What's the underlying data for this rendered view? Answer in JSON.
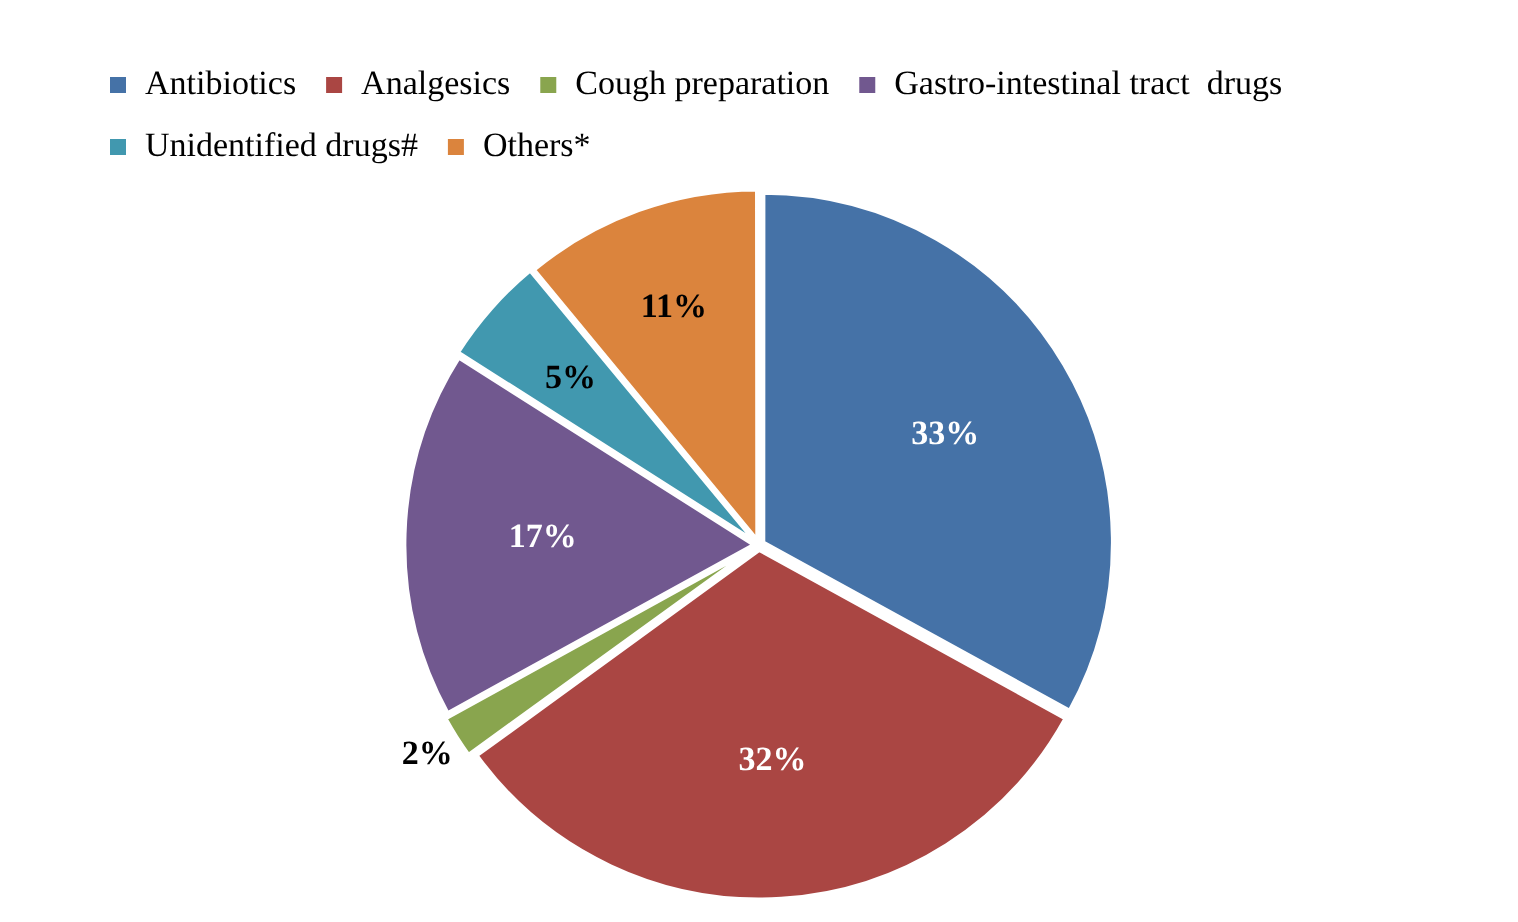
{
  "chart_data": {
    "type": "pie",
    "categories": [
      "Antibiotics",
      "Analgesics",
      "Cough preparation",
      "Gastro-intestinal tract  drugs",
      "Unidentified drugs#",
      "Others*"
    ],
    "values": [
      33,
      32,
      2,
      17,
      5,
      11
    ],
    "colors": [
      "#4572a7",
      "#aa4643",
      "#89a54e",
      "#71588f",
      "#4198af",
      "#db843d"
    ],
    "value_labels": [
      "33%",
      "32%",
      "2%",
      "17%",
      "5%",
      "11%"
    ],
    "legend": "top"
  }
}
